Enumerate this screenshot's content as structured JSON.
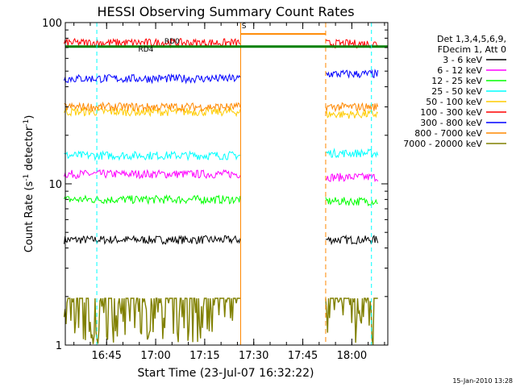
{
  "chart_data": {
    "type": "line",
    "title": "HESSI Observing Summary Count Rates",
    "xlabel": "Start Time (23-Jul-07 16:32:22)",
    "ylabel_main": "Count Rate (s",
    "ylabel_sup": "-1",
    "ylabel_rest": " detector",
    "ylabel_end": ")",
    "yscale": "log",
    "ylim": [
      1,
      100
    ],
    "xlim": [
      "16:32:22",
      "18:11:00"
    ],
    "x_ticks": [
      "16:45",
      "17:00",
      "17:15",
      "17:30",
      "17:45",
      "18:00"
    ],
    "y_ticks": [
      "1",
      "10",
      "100"
    ],
    "footer_date": "15-Jan-2010 13:28",
    "legend": {
      "header": [
        "Det 1,3,4,5,6,9,",
        "FDecim 1, Att 0"
      ],
      "entries": [
        {
          "label": "3 - 6 keV",
          "color": "#000000"
        },
        {
          "label": "6 - 12 keV",
          "color": "#ff00ff"
        },
        {
          "label": "12 - 25 keV",
          "color": "#00ff00"
        },
        {
          "label": "25 - 50 keV",
          "color": "#00ffff"
        },
        {
          "label": "50 - 100 keV",
          "color": "#ffcc00"
        },
        {
          "label": "100 - 300 keV",
          "color": "#ff0000"
        },
        {
          "label": "300 - 800 keV",
          "color": "#0000ff"
        },
        {
          "label": "800 - 7000 keV",
          "color": "#ff8800"
        },
        {
          "label": "7000 - 20000 keV",
          "color": "#808000"
        }
      ]
    },
    "annotations": [
      {
        "text": "RD0",
        "color": "#008000"
      },
      {
        "text": "RD4",
        "color": "#008000"
      },
      {
        "text": "S",
        "color": "#ff8800"
      }
    ],
    "gaps": [
      {
        "start": "17:26",
        "end": "17:52",
        "label": "S"
      }
    ],
    "series": [
      {
        "name": "3 - 6 keV",
        "color": "#000000",
        "segments": [
          {
            "t0": "16:32",
            "t1": "17:26",
            "y": 4.5
          },
          {
            "t0": "17:52",
            "t1": "18:08",
            "y": 4.5
          }
        ]
      },
      {
        "name": "6 - 12 keV",
        "color": "#ff00ff",
        "segments": [
          {
            "t0": "16:32",
            "t1": "17:26",
            "y": 11.5
          },
          {
            "t0": "17:52",
            "t1": "18:08",
            "y": 11
          }
        ]
      },
      {
        "name": "12 - 25 keV",
        "color": "#00ff00",
        "segments": [
          {
            "t0": "16:32",
            "t1": "17:26",
            "y": 8
          },
          {
            "t0": "17:52",
            "t1": "18:08",
            "y": 7.8
          }
        ]
      },
      {
        "name": "25 - 50 keV",
        "color": "#00ffff",
        "segments": [
          {
            "t0": "16:32",
            "t1": "17:26",
            "y": 15
          },
          {
            "t0": "17:52",
            "t1": "18:08",
            "y": 15.5
          }
        ]
      },
      {
        "name": "50 - 100 keV",
        "color": "#ffcc00",
        "segments": [
          {
            "t0": "16:32",
            "t1": "17:26",
            "y": 28
          },
          {
            "t0": "17:52",
            "t1": "18:08",
            "y": 27
          }
        ]
      },
      {
        "name": "100 - 300 keV",
        "color": "#ff0000",
        "segments": [
          {
            "t0": "16:32",
            "t1": "17:26",
            "y": 75
          },
          {
            "t0": "17:52",
            "t1": "18:08",
            "y": 74
          }
        ]
      },
      {
        "name": "300 - 800 keV",
        "color": "#0000ff",
        "segments": [
          {
            "t0": "16:32",
            "t1": "17:26",
            "y": 45
          },
          {
            "t0": "17:52",
            "t1": "18:08",
            "y": 48
          }
        ]
      },
      {
        "name": "800 - 7000 keV",
        "color": "#ff8800",
        "segments": [
          {
            "t0": "16:32",
            "t1": "17:26",
            "y": 30
          },
          {
            "t0": "17:52",
            "t1": "18:08",
            "y": 30
          }
        ]
      },
      {
        "name": "7000 - 20000 keV",
        "color": "#808000",
        "segments": [
          {
            "t0": "16:32",
            "t1": "17:26",
            "y": 1.6
          },
          {
            "t0": "17:52",
            "t1": "18:08",
            "y": 1.6
          }
        ]
      }
    ]
  }
}
